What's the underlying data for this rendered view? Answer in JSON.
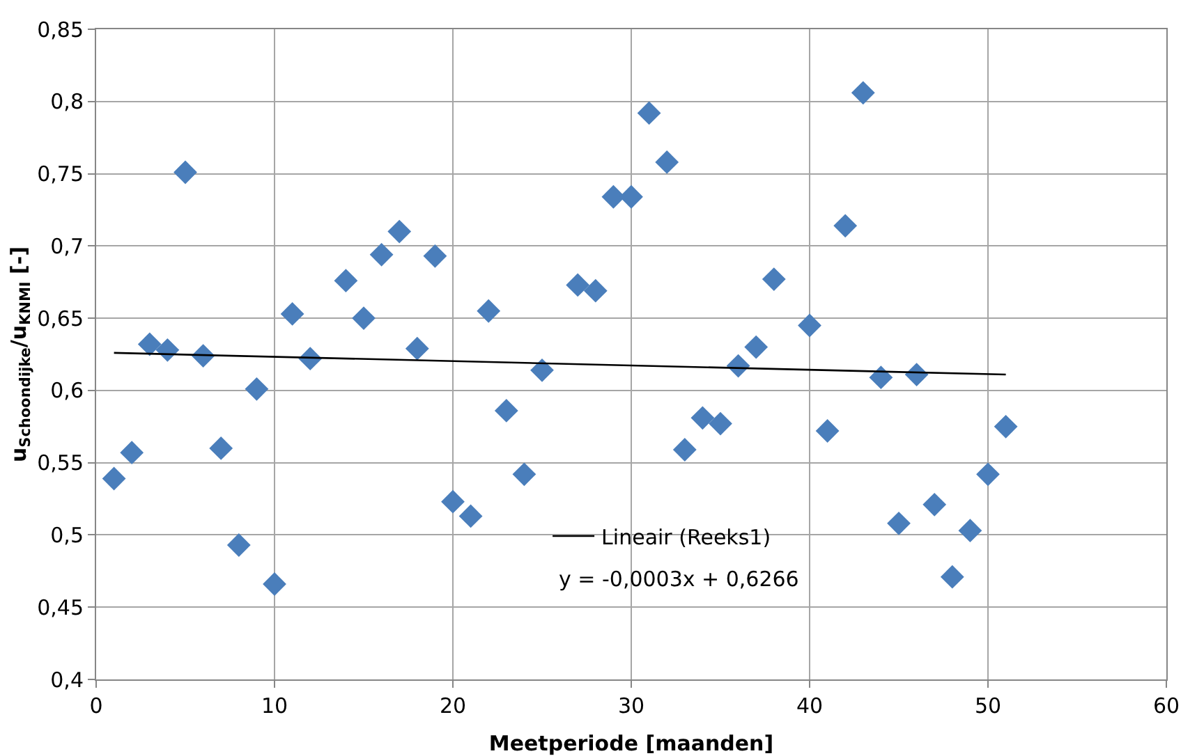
{
  "chart_data": {
    "type": "scatter",
    "xlabel": "Meetperiode [maanden]",
    "ylabel": "u$_{Schoondijke}$/u$_{KNMI}$ [-]",
    "xlim": [
      0,
      60
    ],
    "xticks": [
      0,
      10,
      20,
      30,
      40,
      50,
      60
    ],
    "ylim": [
      0.4,
      0.85
    ],
    "yticks": [
      {
        "value": 0.4,
        "label": "0,4"
      },
      {
        "value": 0.45,
        "label": "0,45"
      },
      {
        "value": 0.5,
        "label": "0,5"
      },
      {
        "value": 0.55,
        "label": "0,55"
      },
      {
        "value": 0.6,
        "label": "0,6"
      },
      {
        "value": 0.65,
        "label": "0,65"
      },
      {
        "value": 0.7,
        "label": "0,7"
      },
      {
        "value": 0.75,
        "label": "0,75"
      },
      {
        "value": 0.8,
        "label": "0,8"
      },
      {
        "value": 0.85,
        "label": "0,85"
      }
    ],
    "grid": true,
    "legend": "bottom",
    "annotations": [
      "y = -0,0003x + 0,6266"
    ],
    "series": [
      {
        "marker": "diamond",
        "color": "#4a7ebb",
        "x": [
          1,
          2,
          3,
          4,
          5,
          6,
          7,
          8,
          9,
          10,
          11,
          12,
          14,
          15,
          16,
          17,
          18,
          19,
          20,
          21,
          22,
          23,
          24,
          25,
          27,
          28,
          29,
          30,
          31,
          32,
          33,
          34,
          35,
          36,
          37,
          38,
          40,
          41,
          42,
          43,
          44,
          45,
          46,
          47,
          48,
          49,
          50,
          51
        ],
        "values": [
          0.539,
          0.557,
          0.632,
          0.628,
          0.751,
          0.624,
          0.56,
          0.493,
          0.601,
          0.466,
          0.653,
          0.622,
          0.676,
          0.65,
          0.694,
          0.71,
          0.629,
          0.693,
          0.523,
          0.513,
          0.655,
          0.586,
          0.542,
          0.614,
          0.673,
          0.669,
          0.734,
          0.734,
          0.792,
          0.758,
          0.559,
          0.581,
          0.577,
          0.617,
          0.63,
          0.677,
          0.645,
          0.572,
          0.714,
          0.806,
          0.609,
          0.508,
          0.611,
          0.521,
          0.471,
          0.503,
          0.542,
          0.575
        ]
      },
      {
        "type": "line",
        "name": "Lineair (Reeks1)",
        "color": "#000000",
        "x": [
          1,
          51
        ],
        "values": [
          0.626,
          0.611
        ]
      }
    ]
  }
}
